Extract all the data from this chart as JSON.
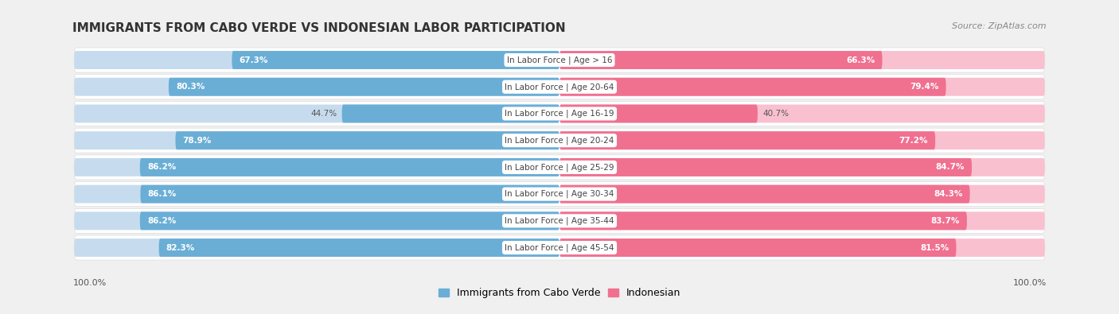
{
  "title": "IMMIGRANTS FROM CABO VERDE VS INDONESIAN LABOR PARTICIPATION",
  "source": "Source: ZipAtlas.com",
  "categories": [
    "In Labor Force | Age > 16",
    "In Labor Force | Age 20-64",
    "In Labor Force | Age 16-19",
    "In Labor Force | Age 20-24",
    "In Labor Force | Age 25-29",
    "In Labor Force | Age 30-34",
    "In Labor Force | Age 35-44",
    "In Labor Force | Age 45-54"
  ],
  "cabo_verde_values": [
    67.3,
    80.3,
    44.7,
    78.9,
    86.2,
    86.1,
    86.2,
    82.3
  ],
  "indonesian_values": [
    66.3,
    79.4,
    40.7,
    77.2,
    84.7,
    84.3,
    83.7,
    81.5
  ],
  "cabo_verde_color": "#6aaed6",
  "cabo_verde_light_color": "#c6dcee",
  "indonesian_color": "#f07090",
  "indonesian_light_color": "#f9c0d0",
  "row_bg_color": "#efefef",
  "background_color": "#f0f0f0",
  "center_label_bg": "#ffffff",
  "max_value": 100.0,
  "legend_cabo_verde": "Immigrants from Cabo Verde",
  "legend_indonesian": "Indonesian",
  "bottom_left_label": "100.0%",
  "bottom_right_label": "100.0%",
  "title_fontsize": 11,
  "source_fontsize": 8,
  "value_fontsize": 7.5,
  "cat_fontsize": 7.5
}
